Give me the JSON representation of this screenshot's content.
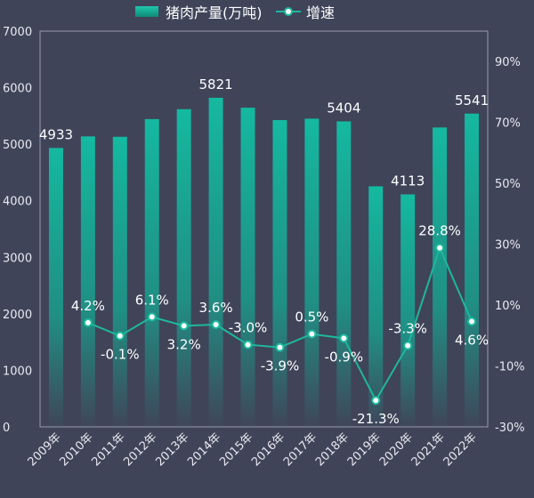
{
  "chart_data": {
    "type": "bar",
    "categories": [
      "2009年",
      "2010年",
      "2011年",
      "2012年",
      "2013年",
      "2014年",
      "2015年",
      "2016年",
      "2017年",
      "2018年",
      "2019年",
      "2020年",
      "2021年",
      "2022年"
    ],
    "series": [
      {
        "name": "猪肉产量(万吨)",
        "type": "bar",
        "axis": "left",
        "values": [
          4933,
          5138,
          5131,
          5444,
          5619,
          5821,
          5645,
          5426,
          5452,
          5404,
          4255,
          4113,
          5296,
          5541
        ],
        "labels": [
          "4933",
          "",
          "",
          "",
          "",
          "5821",
          "",
          "",
          "",
          "5404",
          "",
          "4113",
          "",
          "5541"
        ]
      },
      {
        "name": "增速",
        "type": "line",
        "axis": "right",
        "values": [
          null,
          4.2,
          -0.1,
          6.1,
          3.2,
          3.6,
          -3.0,
          -3.9,
          0.5,
          -0.9,
          -21.3,
          -3.3,
          28.8,
          4.6
        ],
        "labels": [
          "",
          "4.2%",
          "-0.1%",
          "6.1%",
          "3.2%",
          "3.6%",
          "-3.0%",
          "-3.9%",
          "0.5%",
          "-0.9%",
          "-21.3%",
          "-3.3%",
          "28.8%",
          "4.6%"
        ],
        "label_pos": [
          "",
          "above",
          "below",
          "above",
          "below",
          "above",
          "above",
          "below",
          "above",
          "below",
          "below",
          "above",
          "above",
          "below"
        ]
      }
    ],
    "left_axis": {
      "ylim": [
        0,
        7000
      ],
      "ticks": [
        "0",
        "1000",
        "2000",
        "3000",
        "4000",
        "5000",
        "6000",
        "7000"
      ]
    },
    "right_axis": {
      "ylim": [
        -30,
        100
      ],
      "ticks": [
        "-30%",
        "-10%",
        "10%",
        "30%",
        "50%",
        "70%",
        "90%"
      ],
      "tick_values": [
        -30,
        -10,
        10,
        30,
        50,
        70,
        90
      ]
    },
    "legend": {
      "position": "top-center",
      "items": [
        "猪肉产量(万吨)",
        "增速"
      ]
    },
    "grid": false,
    "colors": {
      "bar": "#15b9a0",
      "line": "#1db89e",
      "marker_fill": "#ffffff",
      "background": "#404459"
    }
  }
}
